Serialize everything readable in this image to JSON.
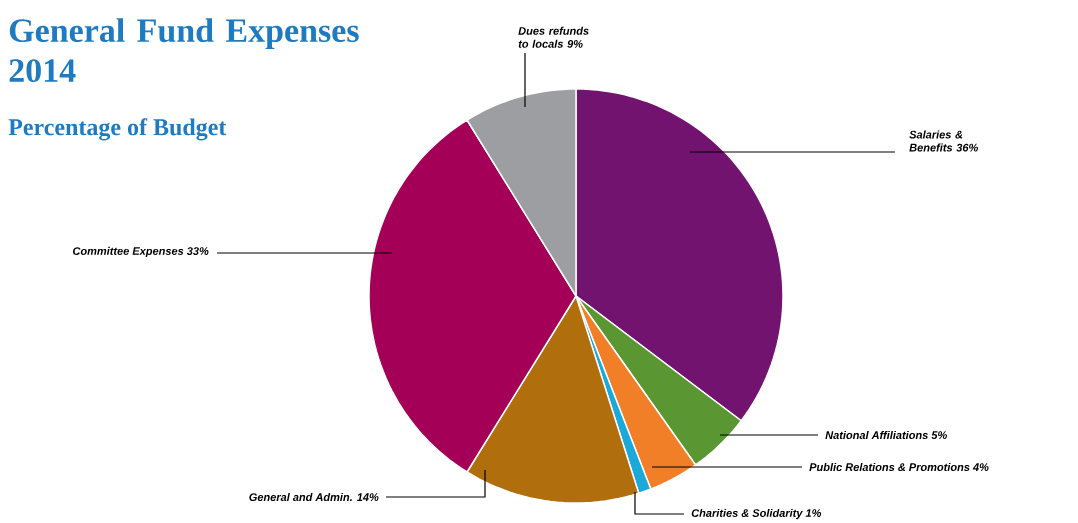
{
  "chart_data": {
    "type": "pie",
    "title": "General Fund Expenses 2014",
    "subtitle": "Percentage of Budget",
    "categories": [
      "Salaries & Benefits",
      "National Affiliations",
      "Public Relations & Promotions",
      "Charities & Solidarity",
      "General and Admin.",
      "Committee Expenses",
      "Dues refunds to locals"
    ],
    "values": [
      36,
      5,
      4,
      1,
      14,
      33,
      9
    ],
    "value_labels": [
      "36%",
      "5%",
      "4%",
      "1%",
      "14%",
      "33%",
      "9%"
    ],
    "colors": [
      "#72146f",
      "#5a9632",
      "#f07f28",
      "#1aa9d8",
      "#b06f0c",
      "#a50057",
      "#9d9ea1"
    ]
  }
}
